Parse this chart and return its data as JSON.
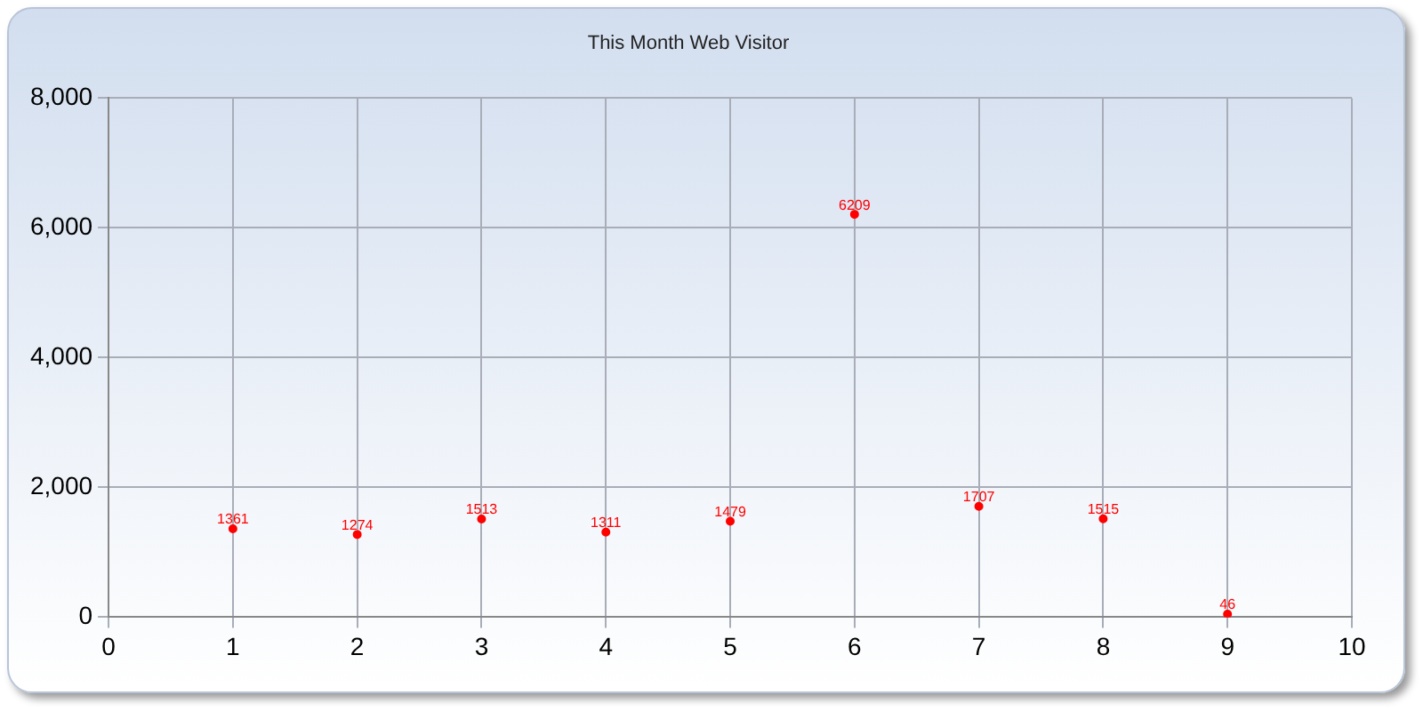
{
  "chart_data": {
    "type": "scatter",
    "title": "This Month Web Visitor",
    "x": [
      1,
      2,
      3,
      4,
      5,
      6,
      7,
      8,
      9
    ],
    "series": [
      {
        "color": "#ff0000",
        "values": [
          1361,
          1274,
          1513,
          1311,
          1479,
          6209,
          1707,
          1515,
          46
        ]
      }
    ],
    "xlim": [
      0,
      10
    ],
    "xticks": [
      0,
      1,
      2,
      3,
      4,
      5,
      6,
      7,
      8,
      9,
      10
    ],
    "ylim": [
      0,
      8000
    ],
    "yticks": [
      {
        "value": 0,
        "label": "0"
      },
      {
        "value": 2000,
        "label": "2,000"
      },
      {
        "value": 4000,
        "label": "4,000"
      },
      {
        "value": 6000,
        "label": "6,000"
      },
      {
        "value": 8000,
        "label": "8,000"
      }
    ],
    "grid": true,
    "legend": false,
    "marker": "circle",
    "data_labels": true
  }
}
